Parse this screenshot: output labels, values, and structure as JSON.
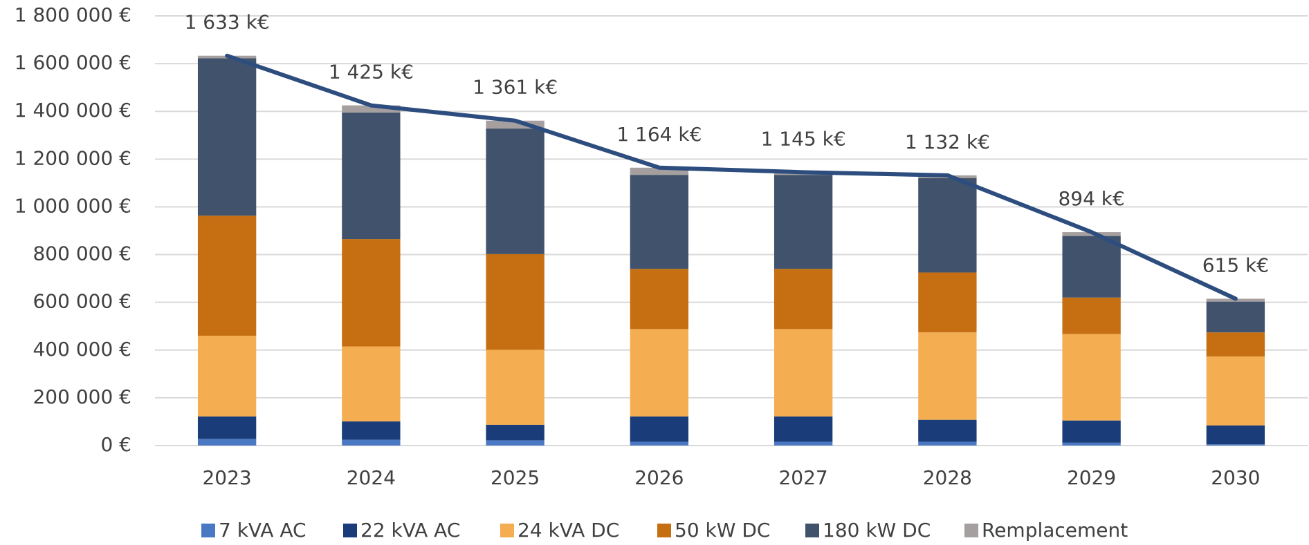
{
  "chart_data": {
    "type": "bar",
    "stacked": true,
    "categories": [
      "2023",
      "2024",
      "2025",
      "2026",
      "2027",
      "2028",
      "2029",
      "2030"
    ],
    "series": [
      {
        "name": "7 kVA AC",
        "color": "#4a78c2",
        "values": [
          28000,
          24000,
          22000,
          16000,
          16000,
          16000,
          12000,
          5000
        ]
      },
      {
        "name": "22 kVA AC",
        "color": "#1a3c78",
        "values": [
          94000,
          77000,
          65000,
          106000,
          106000,
          92000,
          93000,
          79000
        ]
      },
      {
        "name": "24 kVA DC",
        "color": "#f5ad52",
        "values": [
          338000,
          314000,
          314000,
          366000,
          366000,
          366000,
          362000,
          289000
        ]
      },
      {
        "name": "50 kW DC",
        "color": "#c56f12",
        "values": [
          503000,
          450000,
          401000,
          252000,
          252000,
          251000,
          153000,
          101000
        ]
      },
      {
        "name": "180 kW DC",
        "color": "#41536c",
        "values": [
          659000,
          530000,
          526000,
          394000,
          394000,
          395000,
          258000,
          129000
        ]
      },
      {
        "name": "Remplacement",
        "color": "#a59f9f",
        "values": [
          11000,
          30000,
          33000,
          30000,
          11000,
          12000,
          16000,
          12000
        ]
      }
    ],
    "total_line": {
      "type": "line",
      "color": "#2e4d7f",
      "values": [
        1633000,
        1425000,
        1361000,
        1164000,
        1145000,
        1132000,
        894000,
        615000
      ],
      "value_labels": [
        "1 633 k€",
        "1 425 k€",
        "1 361 k€",
        "1 164 k€",
        "1 145 k€",
        "1 132 k€",
        "894 k€",
        "615 k€"
      ]
    },
    "ylim": [
      0,
      1800000
    ],
    "yticks": [
      {
        "value": 0,
        "label": "0 €"
      },
      {
        "value": 200000,
        "label": "200 000 €"
      },
      {
        "value": 400000,
        "label": "400 000 €"
      },
      {
        "value": 600000,
        "label": "600 000 €"
      },
      {
        "value": 800000,
        "label": "800 000 €"
      },
      {
        "value": 1000000,
        "label": "1 000 000 €"
      },
      {
        "value": 1200000,
        "label": "1 200 000 €"
      },
      {
        "value": 1400000,
        "label": "1 400 000 €"
      },
      {
        "value": 1600000,
        "label": "1 600 000 €"
      },
      {
        "value": 1800000,
        "label": "1 800 000 €"
      }
    ],
    "grid": true,
    "legend": "bottom"
  }
}
